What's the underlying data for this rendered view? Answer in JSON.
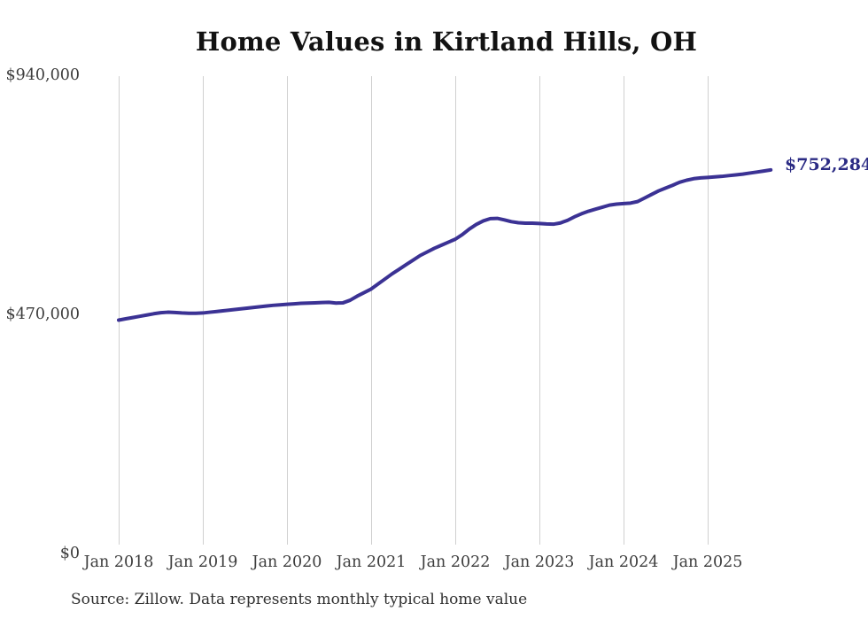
{
  "title": "Home Values in Kirtland Hills, OH",
  "source_note": "Source: Zillow. Data represents monthly typical home value",
  "end_label": "$752,284",
  "colors": {
    "line": "#3b3294",
    "end_label": "#2b2b84",
    "grid": "#d0d0d0",
    "axis_text": "#3d3d3d",
    "title_text": "#121212",
    "source_text": "#303030",
    "background": "#ffffff"
  },
  "chart_data": {
    "type": "line",
    "title": "Home Values in Kirtland Hills, OH",
    "x_interval": "monthly",
    "x_start": "2018-01",
    "x_end": "2025-10",
    "x_tick_labels": [
      "Jan 2018",
      "Jan 2019",
      "Jan 2020",
      "Jan 2021",
      "Jan 2022",
      "Jan 2023",
      "Jan 2024",
      "Jan 2025"
    ],
    "y_ticks": [
      {
        "value": 940000,
        "label": "$940,000"
      },
      {
        "value": 470000,
        "label": "$470,000"
      },
      {
        "value": 0,
        "label": "$0"
      }
    ],
    "ylim": [
      0,
      940000
    ],
    "grid": "vertical-only",
    "legend": "none",
    "series": [
      {
        "name": "Typical home value",
        "values": [
          457000,
          459500,
          462000,
          464500,
          467000,
          469500,
          471500,
          472500,
          472000,
          471000,
          470500,
          470500,
          471000,
          472500,
          474000,
          475500,
          477000,
          478500,
          480000,
          481500,
          483000,
          484500,
          486000,
          487000,
          488000,
          489000,
          490000,
          490500,
          491000,
          491500,
          492000,
          490500,
          491000,
          496000,
          504000,
          511000,
          518000,
          528000,
          538000,
          548000,
          557000,
          566000,
          575000,
          584000,
          591000,
          598000,
          604000,
          610000,
          616000,
          625000,
          636000,
          645000,
          652000,
          656500,
          657000,
          654000,
          650500,
          648500,
          647500,
          647500,
          647000,
          646000,
          645500,
          648000,
          653000,
          660000,
          666000,
          671000,
          675000,
          679000,
          683000,
          685000,
          686000,
          687000,
          690000,
          697000,
          704000,
          711000,
          716500,
          722000,
          728000,
          732000,
          735000,
          736500,
          737500,
          738500,
          739500,
          741000,
          742500,
          744000,
          746000,
          748000,
          750000,
          752284
        ]
      }
    ],
    "last_point": {
      "x": "2025-10",
      "value": 752284,
      "label": "$752,284"
    }
  }
}
